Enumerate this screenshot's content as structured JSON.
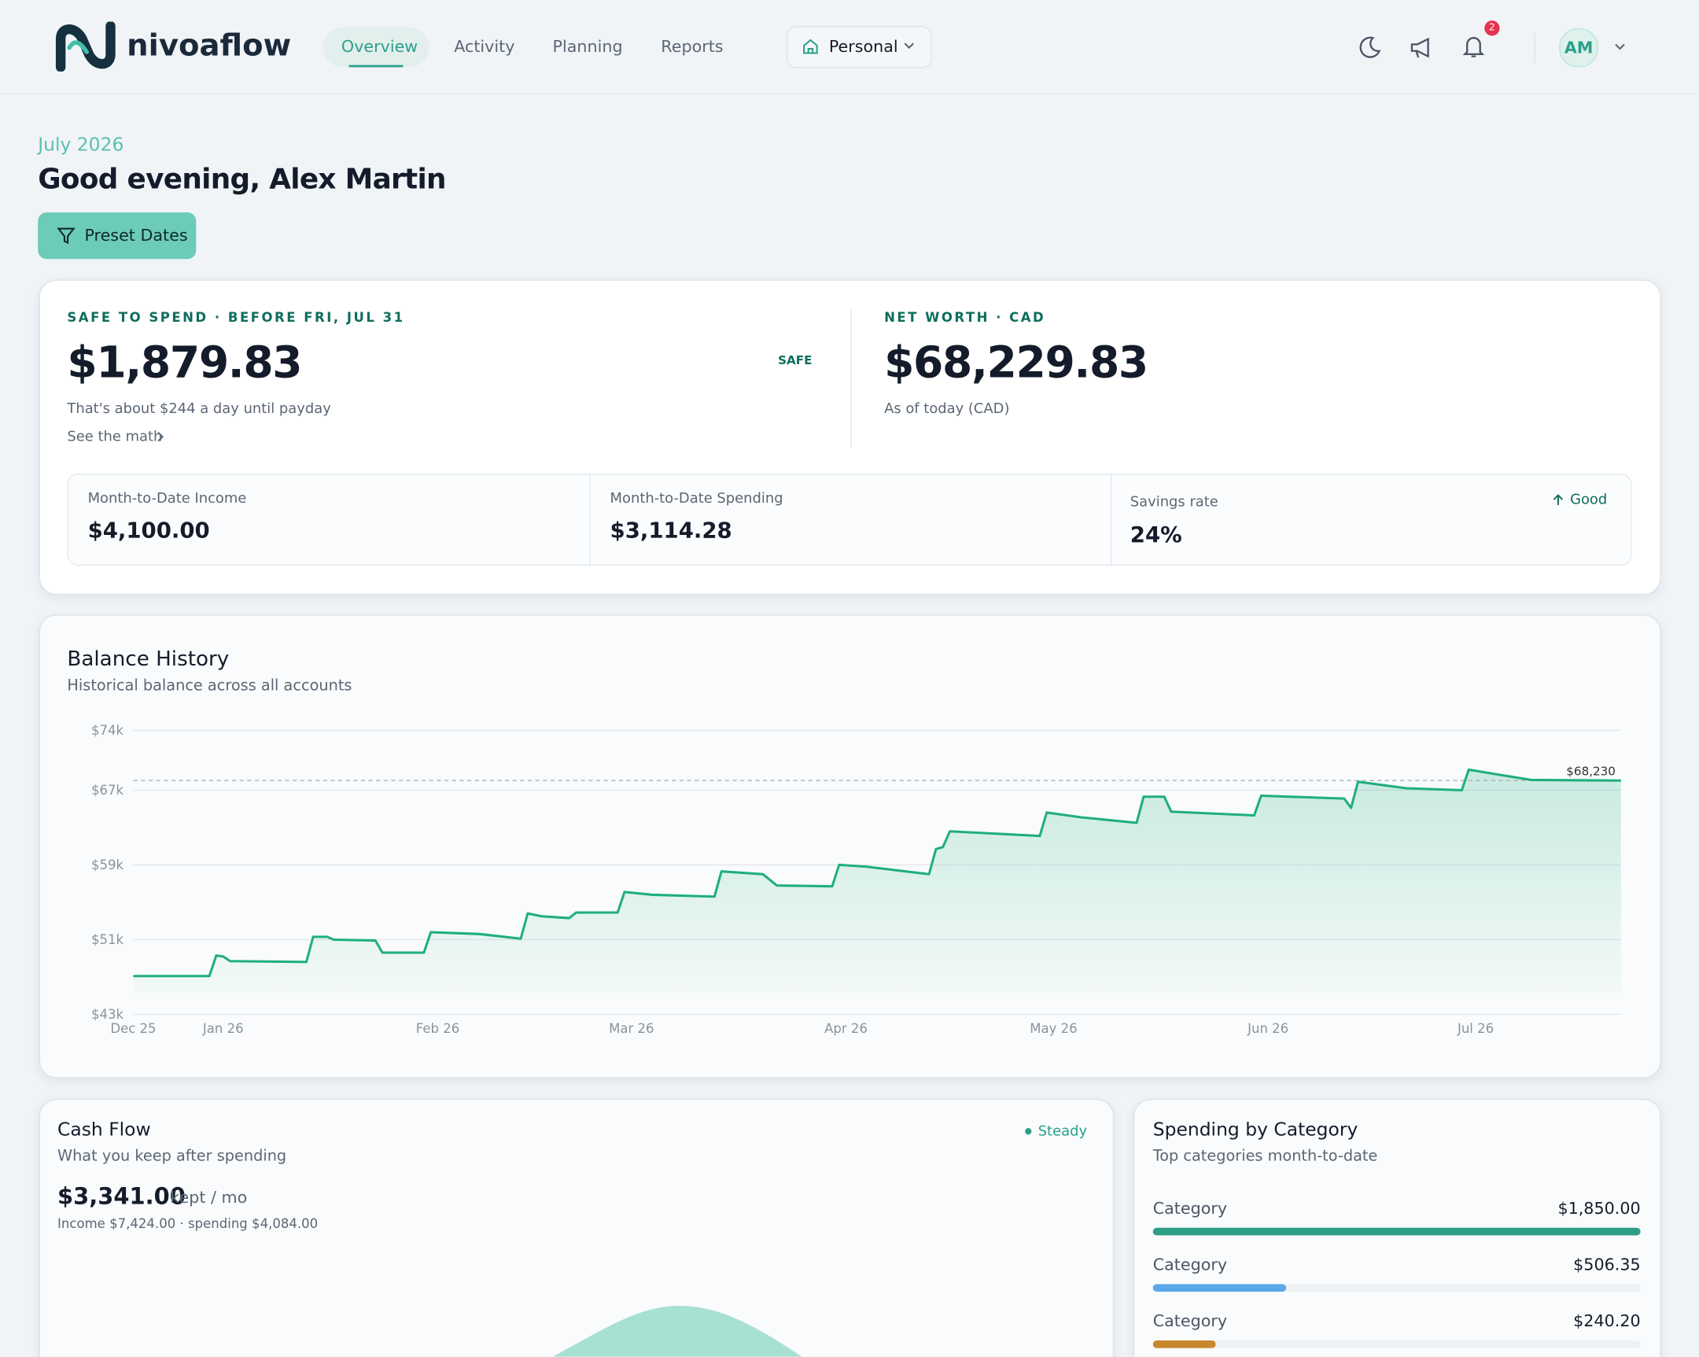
{
  "header": {
    "brand": "nivoaflow",
    "nav": [
      "Overview",
      "Activity",
      "Planning",
      "Reports"
    ],
    "workspace": "Personal",
    "notifications": "2",
    "avatar": "AM"
  },
  "greeting": {
    "period": "July 2026",
    "title": "Good evening, Alex Martin",
    "button": "Preset Dates"
  },
  "summary": {
    "safe_label": "SAFE TO SPEND · BEFORE FRI, JUL 31",
    "safe_amount": "$1,879.83",
    "safe_badge": "SAFE",
    "safe_note": "That's about $244 a day until payday",
    "safe_link": "See the math",
    "net_label": "NET WORTH · CAD",
    "net_amount": "$68,229.83",
    "net_note": "As of today (CAD)",
    "stats": [
      {
        "label": "Month-to-Date Income",
        "value": "$4,100.00"
      },
      {
        "label": "Month-to-Date Spending",
        "value": "$3,114.28"
      },
      {
        "label": "Savings rate",
        "value": "24%"
      }
    ],
    "savings_badge": "Good"
  },
  "balance_history": {
    "title": "Balance History",
    "subtitle": "Historical balance across all accounts",
    "chart_data": {
      "type": "line",
      "color": "#1fae7e",
      "x": [
        0,
        11,
        12,
        13,
        14,
        25,
        26,
        28,
        29,
        35,
        36,
        42,
        43,
        50,
        56,
        57,
        59,
        63,
        64,
        70,
        71,
        75,
        84,
        85,
        91,
        93,
        101,
        102,
        106,
        115,
        116,
        117,
        118,
        131,
        132,
        137,
        145,
        146,
        149,
        150,
        162,
        163,
        175,
        176,
        177,
        184,
        192,
        193,
        197,
        202,
        215
      ],
      "values": [
        47300,
        47300,
        49500,
        49400,
        48900,
        48800,
        51500,
        51500,
        51200,
        51100,
        49800,
        49800,
        52000,
        51800,
        51300,
        54000,
        53700,
        53500,
        54100,
        54100,
        56300,
        56000,
        55800,
        58500,
        58200,
        57000,
        56900,
        59200,
        59000,
        58200,
        60900,
        61100,
        62800,
        62300,
        64800,
        64300,
        63700,
        66500,
        66500,
        64900,
        64500,
        66600,
        66300,
        65300,
        68100,
        67400,
        67200,
        69400,
        68900,
        68300,
        68230
      ],
      "xlim": [
        0,
        215
      ],
      "xticks": [
        {
          "value": 0,
          "label": "Dec 25"
        },
        {
          "value": 13,
          "label": "Jan 26"
        },
        {
          "value": 44,
          "label": "Feb 26"
        },
        {
          "value": 72,
          "label": "Mar 26"
        },
        {
          "value": 103,
          "label": "Apr 26"
        },
        {
          "value": 133,
          "label": "May 26"
        },
        {
          "value": 164,
          "label": "Jun 26"
        },
        {
          "value": 194,
          "label": "Jul 26"
        }
      ],
      "ylim": [
        43200,
        73600
      ],
      "yticks": [
        {
          "value": 43200,
          "label": "$43k"
        },
        {
          "value": 51200,
          "label": "$51k"
        },
        {
          "value": 59200,
          "label": "$59k"
        },
        {
          "value": 67200,
          "label": "$67k"
        },
        {
          "value": 73600,
          "label": "$74k"
        }
      ],
      "grid": true,
      "reference": {
        "value": 68230,
        "label": "$68,230"
      }
    }
  },
  "cash_flow": {
    "title": "Cash Flow",
    "subtitle": "What you keep after spending",
    "badge": "Steady",
    "amount": "$3,341.00",
    "unit": "kept / mo",
    "note": "Income $7,424.00 · spending $4,084.00"
  },
  "spending": {
    "title": "Spending by Category",
    "subtitle": "Top categories month-to-date",
    "categories": [
      {
        "name": "Category",
        "value": 1850,
        "label": "$1,850.00",
        "color": "#2f9e86"
      },
      {
        "name": "Category",
        "value": 506.35,
        "label": "$506.35",
        "color": "#5aa8e8"
      },
      {
        "name": "Category",
        "value": 240.2,
        "label": "$240.20",
        "color": "#c8872d"
      }
    ]
  }
}
